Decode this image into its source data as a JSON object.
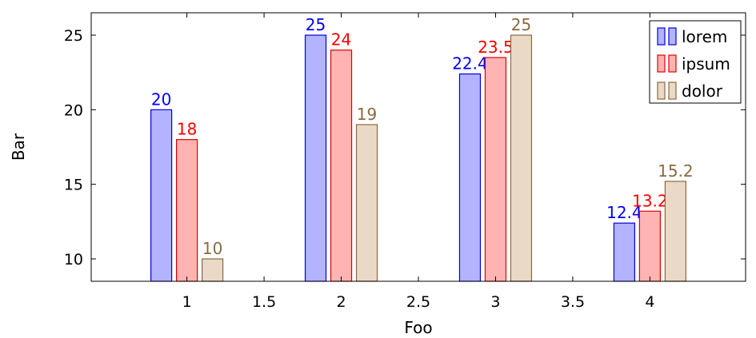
{
  "chart_data": {
    "type": "bar",
    "xlabel": "Foo",
    "ylabel": "Bar",
    "xlim": [
      0.38,
      4.62
    ],
    "ylim": [
      8.5,
      26.5
    ],
    "xticks": [
      "1",
      "1.5",
      "2",
      "2.5",
      "3",
      "3.5",
      "4"
    ],
    "yticks": [
      "10",
      "15",
      "20",
      "25"
    ],
    "legend_position": "top-right",
    "grid": false,
    "categories": [
      1,
      2,
      3,
      4
    ],
    "series": [
      {
        "name": "lorem",
        "values": [
          20,
          25,
          22.4,
          12.4
        ],
        "labels": [
          "20",
          "25",
          "22.4",
          "12.4"
        ],
        "fill": "#b3b3ff",
        "stroke": "#0000e0",
        "label_color": "#0000ff"
      },
      {
        "name": "ipsum",
        "values": [
          18,
          24,
          23.5,
          13.2
        ],
        "labels": [
          "18",
          "24",
          "23.5",
          "13.2"
        ],
        "fill": "#ffb3b3",
        "stroke": "#e00000",
        "label_color": "#ff0000"
      },
      {
        "name": "dolor",
        "values": [
          10,
          19,
          25,
          15.2
        ],
        "labels": [
          "10",
          "19",
          "25",
          "15.2"
        ],
        "fill": "#ead9c6",
        "stroke": "#8a6a40",
        "label_color": "#8a6a40"
      }
    ]
  }
}
